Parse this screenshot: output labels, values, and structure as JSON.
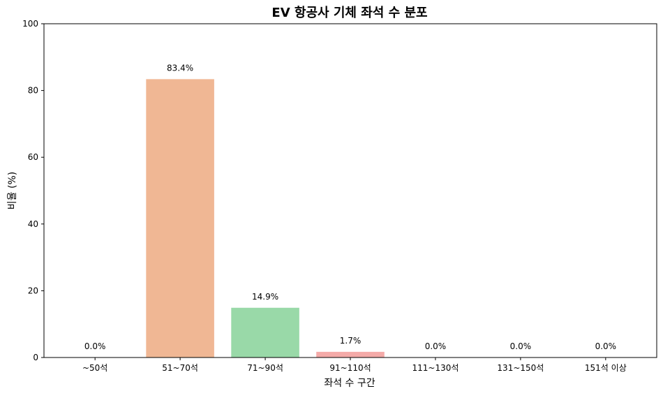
{
  "chart_data": {
    "type": "bar",
    "title": "EV 항공사 기체 좌석 수 분포",
    "xlabel": "좌석 수 구간",
    "ylabel": "비율 (%)",
    "categories": [
      "~50석",
      "51~70석",
      "71~90석",
      "91~110석",
      "111~130석",
      "131~150석",
      "151석 이상"
    ],
    "values": [
      0.0,
      83.4,
      14.9,
      1.7,
      0.0,
      0.0,
      0.0
    ],
    "data_labels": [
      "0.0%",
      "83.4%",
      "14.9%",
      "1.7%",
      "0.0%",
      "0.0%",
      "0.0%"
    ],
    "colors": [
      "#87b4e0",
      "#f0b794",
      "#99d9a8",
      "#f4aaa8",
      "#c9b3e5",
      "#c9a99f",
      "#f2b8d6"
    ],
    "ylim": [
      0,
      100
    ],
    "yticks": [
      "0",
      "20",
      "40",
      "60",
      "80",
      "100"
    ],
    "grid": false,
    "legend": "none"
  }
}
